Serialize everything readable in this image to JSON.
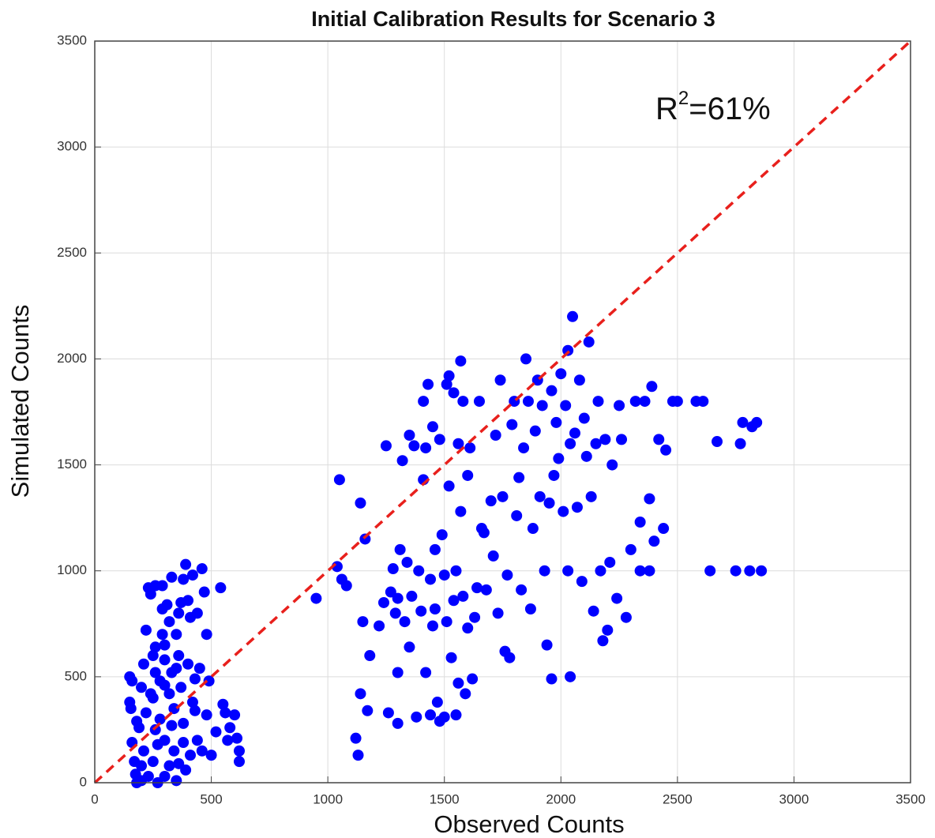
{
  "chart_data": {
    "type": "scatter",
    "title": "Initial Calibration Results for Scenario 3",
    "x_label": "Observed Counts",
    "y_label": "Simulated Counts",
    "annotation": {
      "base": "R",
      "superscript": "2",
      "text": "=61%"
    },
    "xlim": [
      0,
      3500
    ],
    "ylim": [
      0,
      3500
    ],
    "xticks": [
      0,
      500,
      1000,
      1500,
      2000,
      2500,
      3000,
      3500
    ],
    "yticks": [
      0,
      500,
      1000,
      1500,
      2000,
      2500,
      3000,
      3500
    ],
    "grid": true,
    "reference_line": {
      "x": [
        0,
        3500
      ],
      "y": [
        0,
        3500
      ],
      "color": "#e8201c",
      "style": "dashed"
    },
    "series": [
      {
        "color": "#0000ff",
        "x": [
          150,
          160,
          150,
          155,
          160,
          170,
          175,
          180,
          190,
          200,
          200,
          210,
          210,
          220,
          220,
          230,
          240,
          250,
          250,
          250,
          260,
          260,
          260,
          270,
          280,
          280,
          290,
          290,
          300,
          300,
          300,
          300,
          310,
          320,
          320,
          330,
          330,
          340,
          340,
          350,
          350,
          360,
          360,
          370,
          370,
          380,
          380,
          390,
          390,
          400,
          400,
          410,
          420,
          420,
          430,
          440,
          440,
          450,
          460,
          460,
          470,
          480,
          490,
          500,
          520,
          540,
          550,
          560,
          570,
          580,
          600,
          610,
          620,
          620,
          480,
          200,
          230,
          270,
          330,
          240,
          300,
          360,
          410,
          290,
          180,
          260,
          350,
          320,
          380,
          430,
          950,
          1040,
          1050,
          1060,
          1080,
          1120,
          1130,
          1140,
          1140,
          1150,
          1160,
          1170,
          1180,
          1220,
          1240,
          1250,
          1260,
          1270,
          1280,
          1290,
          1300,
          1300,
          1300,
          1310,
          1320,
          1330,
          1340,
          1350,
          1350,
          1360,
          1370,
          1380,
          1390,
          1400,
          1410,
          1410,
          1420,
          1420,
          1430,
          1440,
          1440,
          1450,
          1450,
          1460,
          1460,
          1470,
          1480,
          1480,
          1490,
          1500,
          1500,
          1510,
          1510,
          1520,
          1520,
          1530,
          1540,
          1540,
          1550,
          1550,
          1560,
          1560,
          1570,
          1570,
          1580,
          1580,
          1590,
          1600,
          1600,
          1610,
          1620,
          1630,
          1640,
          1650,
          1660,
          1670,
          1680,
          1700,
          1710,
          1720,
          1730,
          1740,
          1750,
          1760,
          1770,
          1780,
          1790,
          1800,
          1810,
          1820,
          1830,
          1840,
          1850,
          1860,
          1870,
          1880,
          1890,
          1900,
          1910,
          1920,
          1930,
          1940,
          1950,
          1960,
          1960,
          1970,
          1980,
          1990,
          2000,
          2010,
          2020,
          2030,
          2030,
          2040,
          2040,
          2050,
          2060,
          2070,
          2080,
          2090,
          2100,
          2110,
          2120,
          2130,
          2140,
          2150,
          2160,
          2170,
          2180,
          2190,
          2200,
          2210,
          2220,
          2240,
          2250,
          2260,
          2280,
          2300,
          2320,
          2340,
          2360,
          2380,
          2390,
          2400,
          2420,
          2440,
          2450,
          2480,
          2500,
          2580,
          2610,
          2640,
          2670,
          2750,
          2770,
          2780,
          2810,
          2820,
          2840,
          2860,
          2340,
          2380
        ],
        "y": [
          500,
          480,
          380,
          350,
          190,
          100,
          40,
          0,
          260,
          10,
          450,
          560,
          150,
          720,
          330,
          920,
          890,
          600,
          400,
          100,
          930,
          520,
          250,
          0,
          480,
          300,
          930,
          820,
          650,
          580,
          200,
          30,
          840,
          760,
          420,
          970,
          520,
          350,
          150,
          700,
          10,
          800,
          600,
          850,
          450,
          960,
          280,
          1030,
          60,
          860,
          560,
          780,
          980,
          380,
          340,
          800,
          200,
          540,
          1010,
          150,
          900,
          320,
          480,
          130,
          240,
          920,
          370,
          330,
          200,
          260,
          320,
          210,
          150,
          100,
          700,
          80,
          30,
          180,
          270,
          420,
          460,
          90,
          130,
          700,
          290,
          640,
          540,
          80,
          190,
          490,
          870,
          1020,
          1430,
          960,
          930,
          210,
          130,
          420,
          1320,
          760,
          1150,
          340,
          600,
          740,
          850,
          1590,
          330,
          900,
          1010,
          800,
          520,
          870,
          280,
          1100,
          1520,
          760,
          1040,
          640,
          1640,
          880,
          1590,
          310,
          1000,
          810,
          1430,
          1800,
          520,
          1580,
          1880,
          960,
          320,
          1680,
          740,
          1100,
          820,
          380,
          290,
          1620,
          1170,
          310,
          980,
          760,
          1880,
          1400,
          1920,
          590,
          860,
          1840,
          320,
          1000,
          470,
          1600,
          1990,
          1280,
          1800,
          880,
          420,
          1450,
          730,
          1580,
          490,
          780,
          920,
          1800,
          1200,
          1180,
          910,
          1330,
          1070,
          1640,
          800,
          1900,
          1350,
          620,
          980,
          590,
          1690,
          1800,
          1260,
          1440,
          910,
          1580,
          2000,
          1800,
          820,
          1200,
          1660,
          1900,
          1350,
          1780,
          1000,
          650,
          1320,
          490,
          1850,
          1450,
          1700,
          1530,
          1930,
          1280,
          1780,
          1000,
          2040,
          500,
          1600,
          2200,
          1650,
          1300,
          1900,
          950,
          1720,
          1540,
          2080,
          1350,
          810,
          1600,
          1800,
          1000,
          670,
          1620,
          720,
          1040,
          1500,
          870,
          1780,
          1620,
          780,
          1100,
          1800,
          1230,
          1800,
          1340,
          1870,
          1140,
          1620,
          1200,
          1570,
          1800,
          1800,
          1800,
          1800,
          1000,
          1610,
          1000,
          1600,
          1700,
          1000,
          1680,
          1700,
          1000,
          1000,
          1000
        ]
      }
    ]
  }
}
